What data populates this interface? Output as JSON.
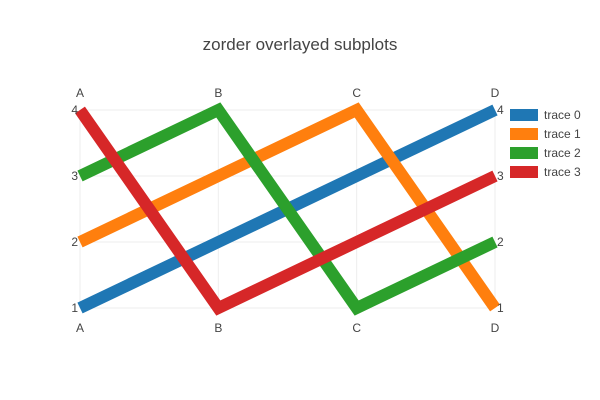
{
  "chart_data": {
    "type": "line",
    "title": "zorder overlayed subplots",
    "categories": [
      "A",
      "B",
      "C",
      "D"
    ],
    "ylim": [
      1,
      4
    ],
    "yticks": [
      1,
      2,
      3,
      4
    ],
    "grid": true,
    "legend_position": "top-right",
    "series": [
      {
        "name": "trace 0",
        "values": [
          1,
          2,
          3,
          4
        ],
        "color": "#1f77b4"
      },
      {
        "name": "trace 1",
        "values": [
          2,
          3,
          4,
          1
        ],
        "color": "#ff7f0e"
      },
      {
        "name": "trace 2",
        "values": [
          3,
          4,
          1,
          2
        ],
        "color": "#2ca02c"
      },
      {
        "name": "trace 3",
        "values": [
          4,
          1,
          2,
          3
        ],
        "color": "#d62728"
      }
    ]
  }
}
